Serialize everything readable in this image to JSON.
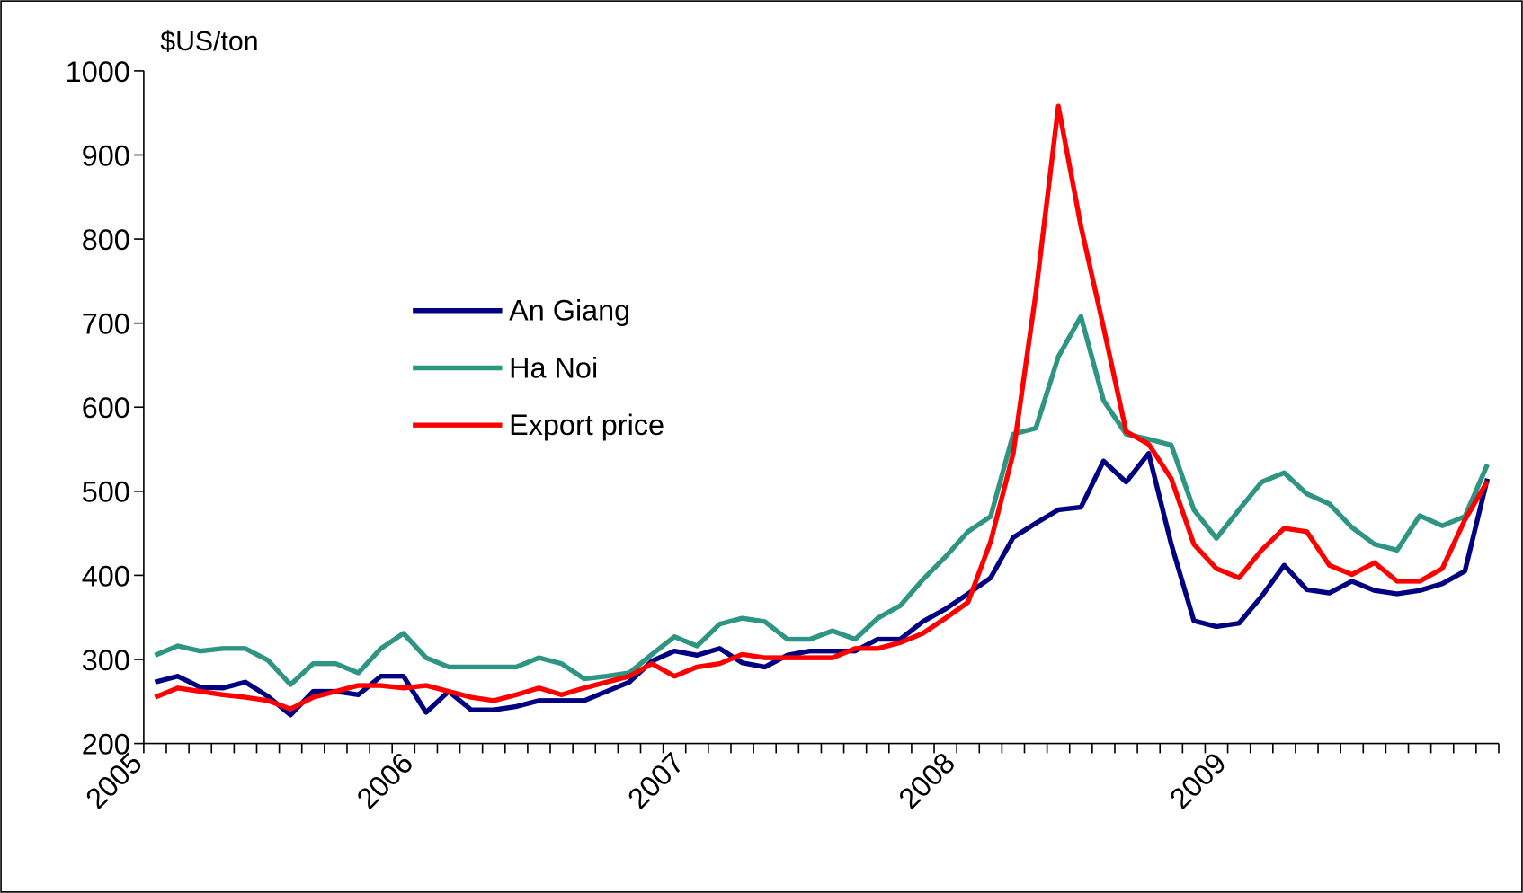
{
  "chart_data": {
    "type": "line",
    "y_label": "$US/ton",
    "categories": [
      "2005",
      null,
      null,
      null,
      null,
      null,
      null,
      null,
      null,
      null,
      null,
      null,
      "2006",
      null,
      null,
      null,
      null,
      null,
      null,
      null,
      null,
      null,
      null,
      null,
      "2007",
      null,
      null,
      null,
      null,
      null,
      null,
      null,
      null,
      null,
      null,
      null,
      "2008",
      null,
      null,
      null,
      null,
      null,
      null,
      null,
      null,
      null,
      null,
      null,
      "2009",
      null,
      null,
      null,
      null,
      null,
      null,
      null,
      null,
      null,
      null,
      null
    ],
    "ylim": [
      200,
      1000
    ],
    "yticks": [
      200,
      300,
      400,
      500,
      600,
      700,
      800,
      900,
      1000
    ],
    "series": [
      {
        "name": "An Giang",
        "color": "#000080",
        "values": [
          273,
          280,
          267,
          266,
          273,
          256,
          234,
          262,
          262,
          258,
          280,
          280,
          237,
          262,
          240,
          240,
          244,
          251,
          251,
          251,
          262,
          273,
          298,
          310,
          305,
          313,
          296,
          291,
          305,
          310,
          310,
          310,
          324,
          324,
          345,
          360,
          378,
          397,
          445,
          462,
          478,
          481,
          536,
          511,
          545,
          437,
          346,
          339,
          343,
          375,
          412,
          383,
          379,
          393,
          382,
          378,
          382,
          390,
          405,
          515
        ]
      },
      {
        "name": "Ha Noi",
        "color": "#2e9583",
        "values": [
          305,
          316,
          310,
          313,
          313,
          299,
          270,
          295,
          295,
          284,
          313,
          331,
          302,
          291,
          291,
          291,
          291,
          302,
          295,
          277,
          280,
          284,
          306,
          327,
          316,
          342,
          349,
          345,
          324,
          324,
          334,
          324,
          349,
          364,
          395,
          422,
          452,
          470,
          568,
          575,
          660,
          708,
          608,
          568,
          562,
          555,
          478,
          444,
          478,
          511,
          522,
          497,
          485,
          457,
          437,
          430,
          471,
          459,
          470,
          532
        ]
      },
      {
        "name": "Export price",
        "color": "#ff0000",
        "values": [
          255,
          266,
          262,
          258,
          255,
          251,
          241,
          255,
          262,
          269,
          269,
          266,
          269,
          262,
          255,
          251,
          258,
          266,
          258,
          266,
          273,
          280,
          295,
          280,
          291,
          295,
          306,
          302,
          302,
          302,
          302,
          313,
          313,
          320,
          331,
          349,
          368,
          440,
          545,
          735,
          958,
          815,
          695,
          571,
          556,
          515,
          437,
          408,
          397,
          430,
          456,
          452,
          412,
          401,
          415,
          393,
          393,
          408,
          466,
          512
        ]
      }
    ]
  }
}
